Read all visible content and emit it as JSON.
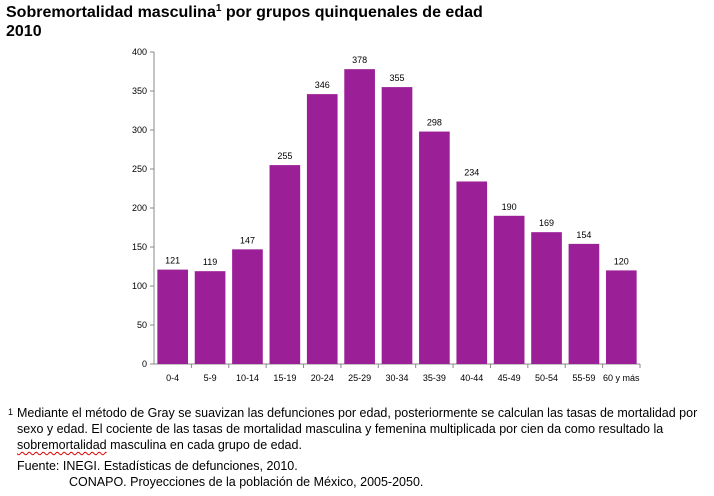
{
  "title": {
    "main": "Sobremortalidad masculina",
    "footnote_mark": "1",
    "rest": " por grupos quinquenales de edad",
    "year": "2010"
  },
  "colors": {
    "bar": "#9b1f96",
    "axis": "#888888"
  },
  "chart_data": {
    "type": "bar",
    "categories": [
      "0-4",
      "5-9",
      "10-14",
      "15-19",
      "20-24",
      "25-29",
      "30-34",
      "35-39",
      "40-44",
      "45-49",
      "50-54",
      "55-59",
      "60 y más"
    ],
    "values": [
      121,
      119,
      147,
      255,
      346,
      378,
      355,
      298,
      234,
      190,
      169,
      154,
      120
    ],
    "ylim": [
      0,
      400
    ],
    "yticks": [
      0,
      50,
      100,
      150,
      200,
      250,
      300,
      350,
      400
    ],
    "data_labels": true,
    "grid": false
  },
  "note": {
    "mark": "1",
    "text_before": "Mediante el método de Gray se suavizan las defunciones por edad, posteriormente se calculan las tasas de mortalidad por sexo y edad. El cociente de las tasas de mortalidad masculina y femenina multiplicada por cien da como resultado la ",
    "underlined": "sobremortalidad",
    "text_after": " masculina en cada grupo de edad."
  },
  "source": {
    "line1": "Fuente: INEGI. Estadísticas de defunciones, 2010.",
    "line2": "CONAPO. Proyecciones de la población de México, 2005-2050."
  }
}
